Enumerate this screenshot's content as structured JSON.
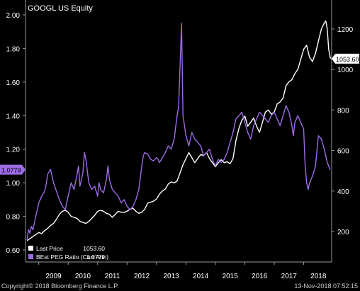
{
  "chart_data": {
    "type": "line",
    "title": "GOOGL US Equity",
    "x_labels": [
      "2009",
      "2010",
      "2011",
      "2012",
      "2013",
      "2014",
      "2015",
      "2016",
      "2017",
      "2018"
    ],
    "y_left": {
      "ticks": [
        "0.60",
        "0.80",
        "1.00",
        "1.20",
        "1.40",
        "1.60",
        "1.80",
        "2.00"
      ],
      "range": [
        0.6,
        2.0
      ]
    },
    "y_right": {
      "ticks": [
        "200",
        "400",
        "600",
        "800",
        "1000",
        "1200"
      ],
      "range": [
        90,
        1340
      ]
    },
    "legend": {
      "position": "bottom-left",
      "entries": [
        {
          "name": "Last Price",
          "value": "1053.60",
          "color": "#ffffff"
        },
        {
          "name": "BEst PEG Ratio (Curr Ann)",
          "value": "1.0779",
          "color": "#9d6be6"
        }
      ]
    },
    "last_value_labels": {
      "price": "1053.60",
      "peg": "1.0779"
    },
    "series": [
      {
        "name": "Last Price",
        "axis": "right",
        "color": "#ffffff",
        "points": [
          [
            2008.6,
            155
          ],
          [
            2008.75,
            170
          ],
          [
            2008.9,
            185
          ],
          [
            2009.0,
            195
          ],
          [
            2009.1,
            190
          ],
          [
            2009.2,
            205
          ],
          [
            2009.3,
            215
          ],
          [
            2009.4,
            230
          ],
          [
            2009.5,
            240
          ],
          [
            2009.6,
            260
          ],
          [
            2009.7,
            285
          ],
          [
            2009.8,
            300
          ],
          [
            2009.9,
            305
          ],
          [
            2010.0,
            295
          ],
          [
            2010.1,
            275
          ],
          [
            2010.2,
            270
          ],
          [
            2010.3,
            265
          ],
          [
            2010.4,
            250
          ],
          [
            2010.5,
            245
          ],
          [
            2010.6,
            240
          ],
          [
            2010.7,
            250
          ],
          [
            2010.8,
            265
          ],
          [
            2010.9,
            280
          ],
          [
            2011.0,
            300
          ],
          [
            2011.1,
            305
          ],
          [
            2011.2,
            300
          ],
          [
            2011.3,
            290
          ],
          [
            2011.4,
            285
          ],
          [
            2011.5,
            270
          ],
          [
            2011.6,
            285
          ],
          [
            2011.7,
            300
          ],
          [
            2011.8,
            295
          ],
          [
            2011.9,
            295
          ],
          [
            2012.0,
            300
          ],
          [
            2012.1,
            310
          ],
          [
            2012.2,
            315
          ],
          [
            2012.3,
            300
          ],
          [
            2012.4,
            290
          ],
          [
            2012.5,
            295
          ],
          [
            2012.6,
            310
          ],
          [
            2012.7,
            340
          ],
          [
            2012.8,
            345
          ],
          [
            2012.9,
            350
          ],
          [
            2013.0,
            360
          ],
          [
            2013.1,
            385
          ],
          [
            2013.2,
            400
          ],
          [
            2013.3,
            410
          ],
          [
            2013.4,
            435
          ],
          [
            2013.5,
            445
          ],
          [
            2013.6,
            440
          ],
          [
            2013.7,
            450
          ],
          [
            2013.8,
            490
          ],
          [
            2013.9,
            530
          ],
          [
            2014.0,
            560
          ],
          [
            2014.1,
            590
          ],
          [
            2014.2,
            565
          ],
          [
            2014.3,
            540
          ],
          [
            2014.4,
            560
          ],
          [
            2014.5,
            580
          ],
          [
            2014.6,
            575
          ],
          [
            2014.7,
            590
          ],
          [
            2014.8,
            560
          ],
          [
            2014.9,
            540
          ],
          [
            2015.0,
            520
          ],
          [
            2015.1,
            540
          ],
          [
            2015.2,
            555
          ],
          [
            2015.3,
            540
          ],
          [
            2015.4,
            545
          ],
          [
            2015.5,
            535
          ],
          [
            2015.6,
            560
          ],
          [
            2015.7,
            650
          ],
          [
            2015.8,
            710
          ],
          [
            2015.9,
            750
          ],
          [
            2016.0,
            770
          ],
          [
            2016.1,
            720
          ],
          [
            2016.2,
            740
          ],
          [
            2016.3,
            760
          ],
          [
            2016.4,
            720
          ],
          [
            2016.5,
            690
          ],
          [
            2016.6,
            740
          ],
          [
            2016.7,
            790
          ],
          [
            2016.8,
            800
          ],
          [
            2016.9,
            780
          ],
          [
            2017.0,
            790
          ],
          [
            2017.1,
            830
          ],
          [
            2017.2,
            840
          ],
          [
            2017.3,
            860
          ],
          [
            2017.4,
            920
          ],
          [
            2017.5,
            940
          ],
          [
            2017.6,
            950
          ],
          [
            2017.7,
            980
          ],
          [
            2017.8,
            1000
          ],
          [
            2017.9,
            1050
          ],
          [
            2018.0,
            1100
          ],
          [
            2018.1,
            1120
          ],
          [
            2018.2,
            1060
          ],
          [
            2018.3,
            1040
          ],
          [
            2018.4,
            1080
          ],
          [
            2018.5,
            1140
          ],
          [
            2018.6,
            1200
          ],
          [
            2018.7,
            1230
          ],
          [
            2018.75,
            1240
          ],
          [
            2018.8,
            1200
          ],
          [
            2018.85,
            1100
          ],
          [
            2018.9,
            1060
          ],
          [
            2018.92,
            1053.6
          ]
        ]
      },
      {
        "name": "BEst PEG Ratio (Curr Ann)",
        "axis": "left",
        "color": "#9d6be6",
        "points": [
          [
            2008.6,
            0.66
          ],
          [
            2008.65,
            0.72
          ],
          [
            2008.7,
            0.7
          ],
          [
            2008.75,
            0.74
          ],
          [
            2008.8,
            0.72
          ],
          [
            2008.85,
            0.76
          ],
          [
            2008.9,
            0.8
          ],
          [
            2009.0,
            0.88
          ],
          [
            2009.1,
            0.92
          ],
          [
            2009.2,
            0.95
          ],
          [
            2009.25,
            0.99
          ],
          [
            2009.3,
            1.05
          ],
          [
            2009.4,
            1.08
          ],
          [
            2009.5,
            1.0
          ],
          [
            2009.6,
            0.95
          ],
          [
            2009.7,
            0.9
          ],
          [
            2009.8,
            0.86
          ],
          [
            2009.9,
            0.84
          ],
          [
            2010.0,
            0.92
          ],
          [
            2010.1,
            1.0
          ],
          [
            2010.2,
            0.96
          ],
          [
            2010.3,
            1.05
          ],
          [
            2010.35,
            1.1
          ],
          [
            2010.4,
            0.98
          ],
          [
            2010.5,
            1.06
          ],
          [
            2010.55,
            1.18
          ],
          [
            2010.6,
            1.14
          ],
          [
            2010.7,
            1.0
          ],
          [
            2010.8,
            0.96
          ],
          [
            2010.9,
            0.98
          ],
          [
            2011.0,
            0.92
          ],
          [
            2011.05,
            1.0
          ],
          [
            2011.1,
            0.96
          ],
          [
            2011.2,
            0.94
          ],
          [
            2011.3,
            1.02
          ],
          [
            2011.35,
            1.1
          ],
          [
            2011.4,
            1.02
          ],
          [
            2011.5,
            0.96
          ],
          [
            2011.6,
            0.94
          ],
          [
            2011.7,
            0.92
          ],
          [
            2011.8,
            0.88
          ],
          [
            2011.9,
            0.9
          ],
          [
            2012.0,
            0.86
          ],
          [
            2012.1,
            0.84
          ],
          [
            2012.2,
            0.86
          ],
          [
            2012.3,
            0.9
          ],
          [
            2012.4,
            0.96
          ],
          [
            2012.5,
            1.1
          ],
          [
            2012.55,
            1.16
          ],
          [
            2012.6,
            1.18
          ],
          [
            2012.7,
            1.17
          ],
          [
            2012.8,
            1.14
          ],
          [
            2012.9,
            1.13
          ],
          [
            2013.0,
            1.15
          ],
          [
            2013.05,
            1.14
          ],
          [
            2013.1,
            1.12
          ],
          [
            2013.2,
            1.15
          ],
          [
            2013.3,
            1.18
          ],
          [
            2013.4,
            1.22
          ],
          [
            2013.5,
            1.2
          ],
          [
            2013.6,
            1.26
          ],
          [
            2013.7,
            1.4
          ],
          [
            2013.75,
            1.45
          ],
          [
            2013.8,
            1.7
          ],
          [
            2013.85,
            1.95
          ],
          [
            2013.9,
            1.4
          ],
          [
            2014.0,
            1.28
          ],
          [
            2014.1,
            1.22
          ],
          [
            2014.2,
            1.3
          ],
          [
            2014.3,
            1.26
          ],
          [
            2014.4,
            1.24
          ],
          [
            2014.5,
            1.22
          ],
          [
            2014.6,
            1.16
          ],
          [
            2014.7,
            1.18
          ],
          [
            2014.8,
            1.2
          ],
          [
            2014.9,
            1.14
          ],
          [
            2015.0,
            1.1
          ],
          [
            2015.1,
            1.14
          ],
          [
            2015.2,
            1.12
          ],
          [
            2015.3,
            1.14
          ],
          [
            2015.4,
            1.18
          ],
          [
            2015.5,
            1.24
          ],
          [
            2015.6,
            1.3
          ],
          [
            2015.7,
            1.38
          ],
          [
            2015.8,
            1.4
          ],
          [
            2015.9,
            1.42
          ],
          [
            2016.0,
            1.36
          ],
          [
            2016.1,
            1.3
          ],
          [
            2016.2,
            1.26
          ],
          [
            2016.3,
            1.34
          ],
          [
            2016.4,
            1.38
          ],
          [
            2016.5,
            1.42
          ],
          [
            2016.6,
            1.4
          ],
          [
            2016.7,
            1.38
          ],
          [
            2016.8,
            1.36
          ],
          [
            2016.9,
            1.4
          ],
          [
            2017.0,
            1.42
          ],
          [
            2017.1,
            1.38
          ],
          [
            2017.2,
            1.34
          ],
          [
            2017.3,
            1.4
          ],
          [
            2017.4,
            1.46
          ],
          [
            2017.5,
            1.42
          ],
          [
            2017.6,
            1.34
          ],
          [
            2017.65,
            1.28
          ],
          [
            2017.7,
            1.36
          ],
          [
            2017.8,
            1.4
          ],
          [
            2017.9,
            1.36
          ],
          [
            2018.0,
            1.32
          ],
          [
            2018.05,
            1.1
          ],
          [
            2018.1,
            1.0
          ],
          [
            2018.15,
            0.96
          ],
          [
            2018.2,
            1.0
          ],
          [
            2018.3,
            1.04
          ],
          [
            2018.4,
            1.1
          ],
          [
            2018.5,
            1.28
          ],
          [
            2018.6,
            1.26
          ],
          [
            2018.7,
            1.2
          ],
          [
            2018.8,
            1.12
          ],
          [
            2018.9,
            1.0779
          ]
        ]
      }
    ]
  },
  "footer": {
    "copyright": "Copyright© 2018 Bloomberg Finance L.P.",
    "timestamp": "13-Nov-2018 07:52:15"
  }
}
